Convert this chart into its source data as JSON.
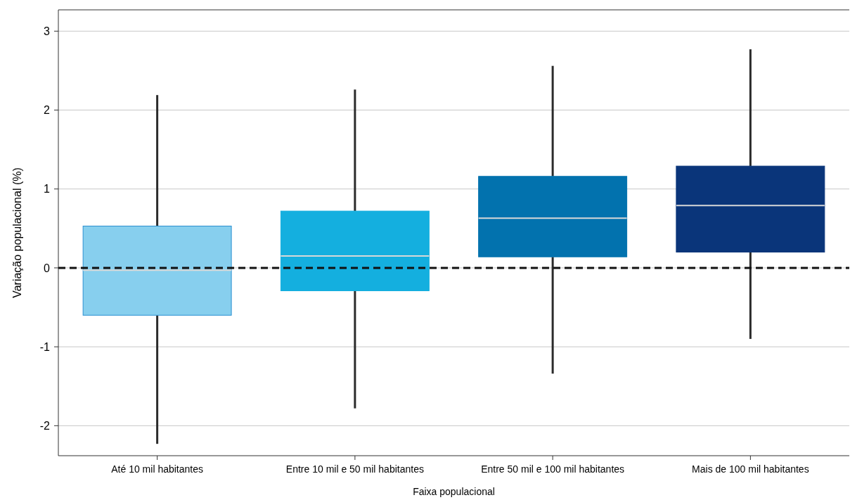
{
  "chart_data": {
    "type": "box",
    "xlabel": "Faixa populacional",
    "ylabel": "Variação populacional (%)",
    "categories": [
      "Até 10 mil habitantes",
      "Entre 10 mil e 50 mil habitantes",
      "Entre 50 mil e 100 mil habitantes",
      "Mais de 100 mil habitantes"
    ],
    "boxes": [
      {
        "low": -2.23,
        "q1": -0.6,
        "median": -0.03,
        "q3": 0.53,
        "high": 2.19
      },
      {
        "low": -1.78,
        "q1": -0.29,
        "median": 0.15,
        "q3": 0.72,
        "high": 2.26
      },
      {
        "low": -1.34,
        "q1": 0.14,
        "median": 0.63,
        "q3": 1.16,
        "high": 2.56
      },
      {
        "low": -0.9,
        "q1": 0.2,
        "median": 0.79,
        "q3": 1.29,
        "high": 2.77
      }
    ],
    "colors": [
      "#87cfee",
      "#14afdf",
      "#0272ae",
      "#0a357a"
    ],
    "ylim": [
      -2.38,
      3.27
    ],
    "yticks": [
      {
        "value": -2,
        "label": "-2"
      },
      {
        "value": -1,
        "label": "-1"
      },
      0,
      1,
      2,
      3
    ],
    "grid": "y",
    "ref_lines": [
      {
        "axis": "y",
        "value": 0,
        "line_style": "dashed",
        "color": "#111111"
      }
    ]
  }
}
